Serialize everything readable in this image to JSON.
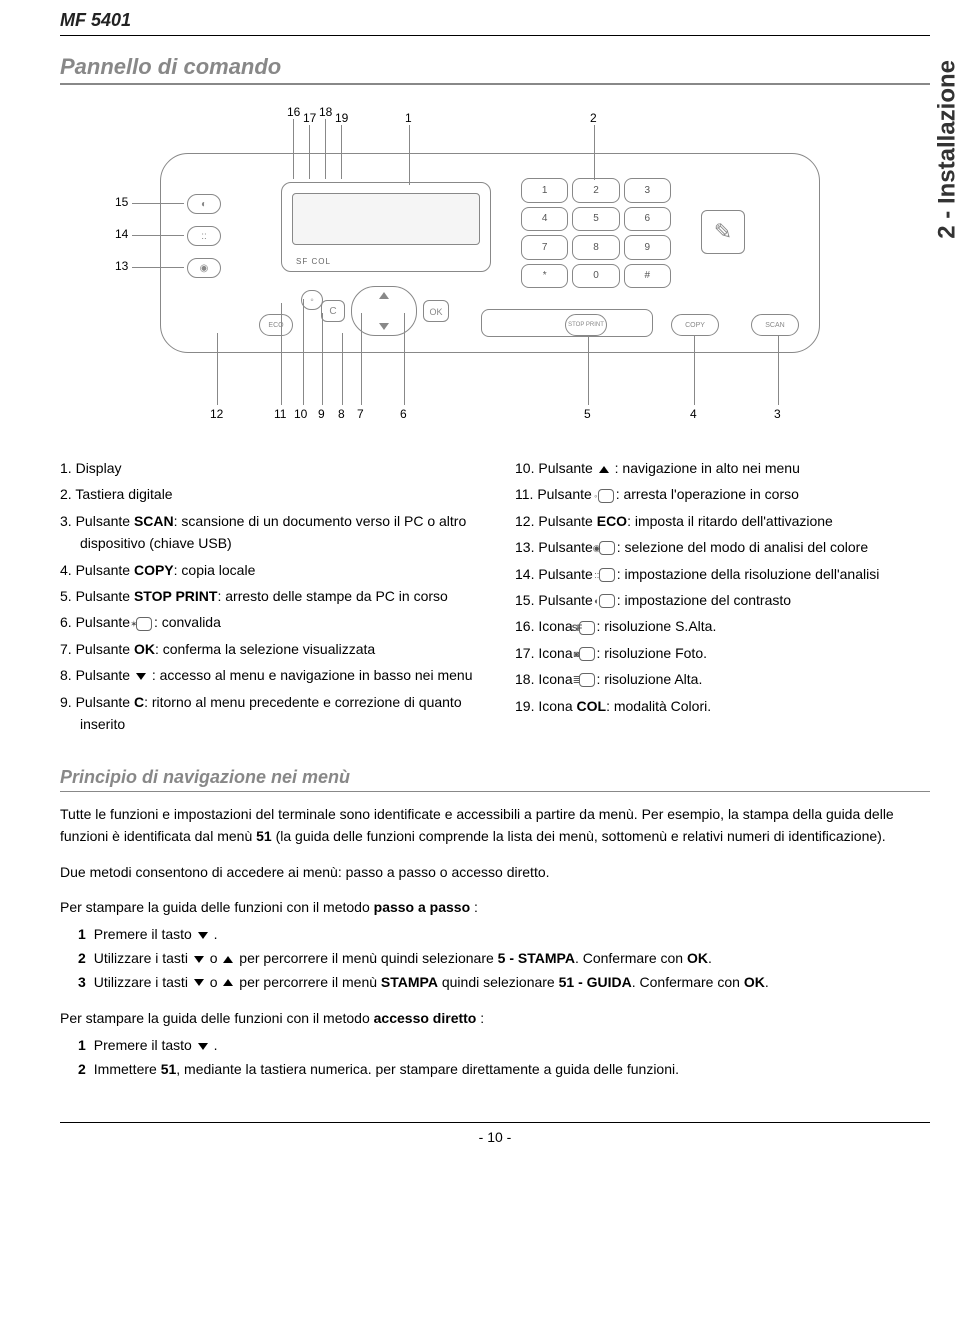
{
  "header": {
    "model": "MF 5401"
  },
  "side_tab": "2 - Installazione",
  "section": {
    "title": "Pannello di comando"
  },
  "diagram": {
    "top_labels": [
      "16",
      "17",
      "18",
      "19",
      "1",
      "2"
    ],
    "left_labels": [
      "15",
      "14",
      "13"
    ],
    "bottom_labels": [
      "12",
      "11",
      "10",
      "9",
      "8",
      "7",
      "6",
      "5",
      "4",
      "3"
    ],
    "keypad": [
      "1",
      "2",
      "3",
      "4",
      "5",
      "6",
      "7",
      "8",
      "9",
      "*",
      "0",
      "#"
    ],
    "stop_print": "STOP PRINT",
    "copy": "COPY",
    "scan": "SCAN",
    "eco": "ECO",
    "ok": "OK",
    "c": "C",
    "screen_icons": "SF  COL"
  },
  "legend_left": [
    {
      "n": "1.",
      "t": "Display"
    },
    {
      "n": "2.",
      "t": "Tastiera digitale"
    },
    {
      "n": "3.",
      "html": "Pulsante <b>SCAN</b>: scansione di un documento verso il PC o altro dispositivo (chiave USB)"
    },
    {
      "n": "4.",
      "html": "Pulsante <b>COPY</b>: copia locale"
    },
    {
      "n": "5.",
      "html": "Pulsante <b>STOP PRINT</b>: arresto delle stampe da PC in corso"
    },
    {
      "n": "6.",
      "html": "Pulsante <span class='inline-icon'>✶</span>: convalida"
    },
    {
      "n": "7.",
      "html": "Pulsante <b>OK</b>: conferma la selezione visualizzata"
    },
    {
      "n": "8.",
      "html": "Pulsante <span class='arrow-icon arrow-down'></span> : accesso al menu e navigazione in basso nei menu"
    },
    {
      "n": "9.",
      "html": "Pulsante <b>C</b>: ritorno al menu precedente e correzione di quanto inserito"
    }
  ],
  "legend_right": [
    {
      "n": "10.",
      "html": "Pulsante <span class='arrow-icon arrow-up'></span> : navigazione in alto nei menu"
    },
    {
      "n": "11.",
      "html": "Pulsante <span class='inline-icon'>◦</span>: arresta l'operazione in corso"
    },
    {
      "n": "12.",
      "html": "Pulsante <b>ECO</b>: imposta il ritardo dell'attivazione"
    },
    {
      "n": "13.",
      "html": "Pulsante <span class='inline-icon'>◉</span>: selezione del modo di analisi del colore"
    },
    {
      "n": "14.",
      "html": "Pulsante <span class='inline-icon'>::</span>: impostazione della risoluzione dell'analisi"
    },
    {
      "n": "15.",
      "html": "Pulsante <span class='inline-icon'>◐</span>: impostazione del contrasto"
    },
    {
      "n": "16.",
      "html": "Icona  <span class='inline-icon' style='letter-spacing:-1px;font-weight:bold'>SF</span>: risoluzione S.Alta."
    },
    {
      "n": "17.",
      "html": "Icona  <span class='inline-icon'>◙</span>: risoluzione Foto."
    },
    {
      "n": "18.",
      "html": "Icona  <span class='inline-icon'>≣</span>: risoluzione Alta."
    },
    {
      "n": "19.",
      "html": "Icona <b>COL</b>: modalità Colori."
    }
  ],
  "nav_section": {
    "title": "Principio di navigazione nei menù",
    "para1": "Tutte le funzioni e impostazioni del terminale sono identificate e accessibili a partire da menù. Per esempio, la stampa della guida delle funzioni è identificata dal menù <b>51</b> (la guida delle funzioni comprende la lista dei menù, sottomenù e relativi numeri di identificazione).",
    "para2": "Due metodi consentono di accedere ai menù: passo a passo o accesso diretto.",
    "method1_intro": "Per stampare la guida delle funzioni con il metodo <b>passo a passo</b> :",
    "method1_steps": [
      "Premere il tasto <span class='arrow-icon arrow-down'></span> .",
      "Utilizzare i tasti <span class='arrow-icon arrow-down'></span>  o  <span class='arrow-icon arrow-up'></span>  per percorrere il menù quindi selezionare  <b>5 - S<span class='smallcaps'>TAMPA</span></b>. Confermare con <b>OK</b>.",
      "Utilizzare i tasti <span class='arrow-icon arrow-down'></span>  o  <span class='arrow-icon arrow-up'></span>  per percorrere il menù <b>S<span class='smallcaps'>TAMPA</span></b> quindi selezionare  <b>51 - G<span class='smallcaps'>UIDA</span></b>. Confermare con <b>OK</b>."
    ],
    "method2_intro": "Per stampare la guida delle funzioni con il metodo <b>accesso diretto</b> :",
    "method2_steps": [
      "Premere il tasto <span class='arrow-icon arrow-down'></span> .",
      "Immettere <b>51</b>, mediante la tastiera numerica. per stampare direttamente a guida delle funzioni."
    ]
  },
  "footer": "- 10 -"
}
